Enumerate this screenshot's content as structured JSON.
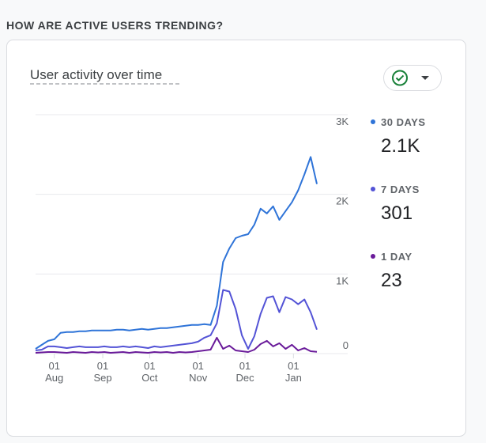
{
  "section_title": "HOW ARE ACTIVE USERS TRENDING?",
  "chart_data": {
    "type": "line",
    "title": "User activity over time",
    "x": [
      "20 Jul",
      "24 Jul",
      "28 Jul",
      "01 Aug",
      "05 Aug",
      "09 Aug",
      "13 Aug",
      "17 Aug",
      "21 Aug",
      "25 Aug",
      "29 Aug",
      "02 Sep",
      "06 Sep",
      "10 Sep",
      "14 Sep",
      "18 Sep",
      "22 Sep",
      "26 Sep",
      "30 Sep",
      "04 Oct",
      "08 Oct",
      "12 Oct",
      "16 Oct",
      "20 Oct",
      "24 Oct",
      "28 Oct",
      "01 Nov",
      "05 Nov",
      "09 Nov",
      "13 Nov",
      "17 Nov",
      "21 Nov",
      "25 Nov",
      "29 Nov",
      "03 Dec",
      "07 Dec",
      "11 Dec",
      "15 Dec",
      "19 Dec",
      "23 Dec",
      "27 Dec",
      "31 Dec",
      "04 Jan",
      "08 Jan",
      "12 Jan",
      "16 Jan"
    ],
    "xticks": [
      "01 Aug",
      "01 Sep",
      "01 Oct",
      "01 Nov",
      "01 Dec",
      "01 Jan"
    ],
    "ylim": [
      0,
      3000
    ],
    "yticks": [
      0,
      {
        "value": 1000,
        "label": "1K"
      },
      {
        "value": 2000,
        "label": "2K"
      },
      {
        "value": 3000,
        "label": "3K"
      }
    ],
    "grid": true,
    "series": [
      {
        "name": "30 DAYS",
        "latest": "2.1K",
        "color": "#2f74d8",
        "values": [
          60,
          110,
          160,
          180,
          260,
          270,
          270,
          280,
          280,
          290,
          290,
          290,
          290,
          300,
          300,
          290,
          300,
          310,
          300,
          310,
          320,
          320,
          330,
          340,
          350,
          360,
          360,
          370,
          360,
          600,
          1150,
          1320,
          1450,
          1480,
          1500,
          1620,
          1820,
          1760,
          1850,
          1680,
          1790,
          1900,
          2050,
          2250,
          2470,
          2130
        ]
      },
      {
        "name": "7 DAYS",
        "latest": "301",
        "color": "#5353d6",
        "values": [
          40,
          50,
          90,
          90,
          80,
          70,
          80,
          90,
          80,
          80,
          80,
          90,
          80,
          80,
          90,
          80,
          90,
          80,
          70,
          90,
          80,
          90,
          100,
          110,
          120,
          130,
          150,
          200,
          230,
          380,
          800,
          780,
          560,
          230,
          60,
          220,
          500,
          700,
          720,
          520,
          710,
          680,
          620,
          680,
          520,
          301
        ]
      },
      {
        "name": "1 DAY",
        "latest": "23",
        "color": "#6a1b9a",
        "values": [
          10,
          15,
          20,
          20,
          15,
          10,
          20,
          15,
          10,
          20,
          15,
          20,
          10,
          15,
          20,
          10,
          20,
          15,
          10,
          20,
          15,
          20,
          10,
          20,
          15,
          20,
          30,
          40,
          50,
          200,
          60,
          100,
          40,
          30,
          20,
          50,
          120,
          160,
          90,
          130,
          60,
          110,
          40,
          70,
          30,
          23
        ]
      }
    ]
  }
}
